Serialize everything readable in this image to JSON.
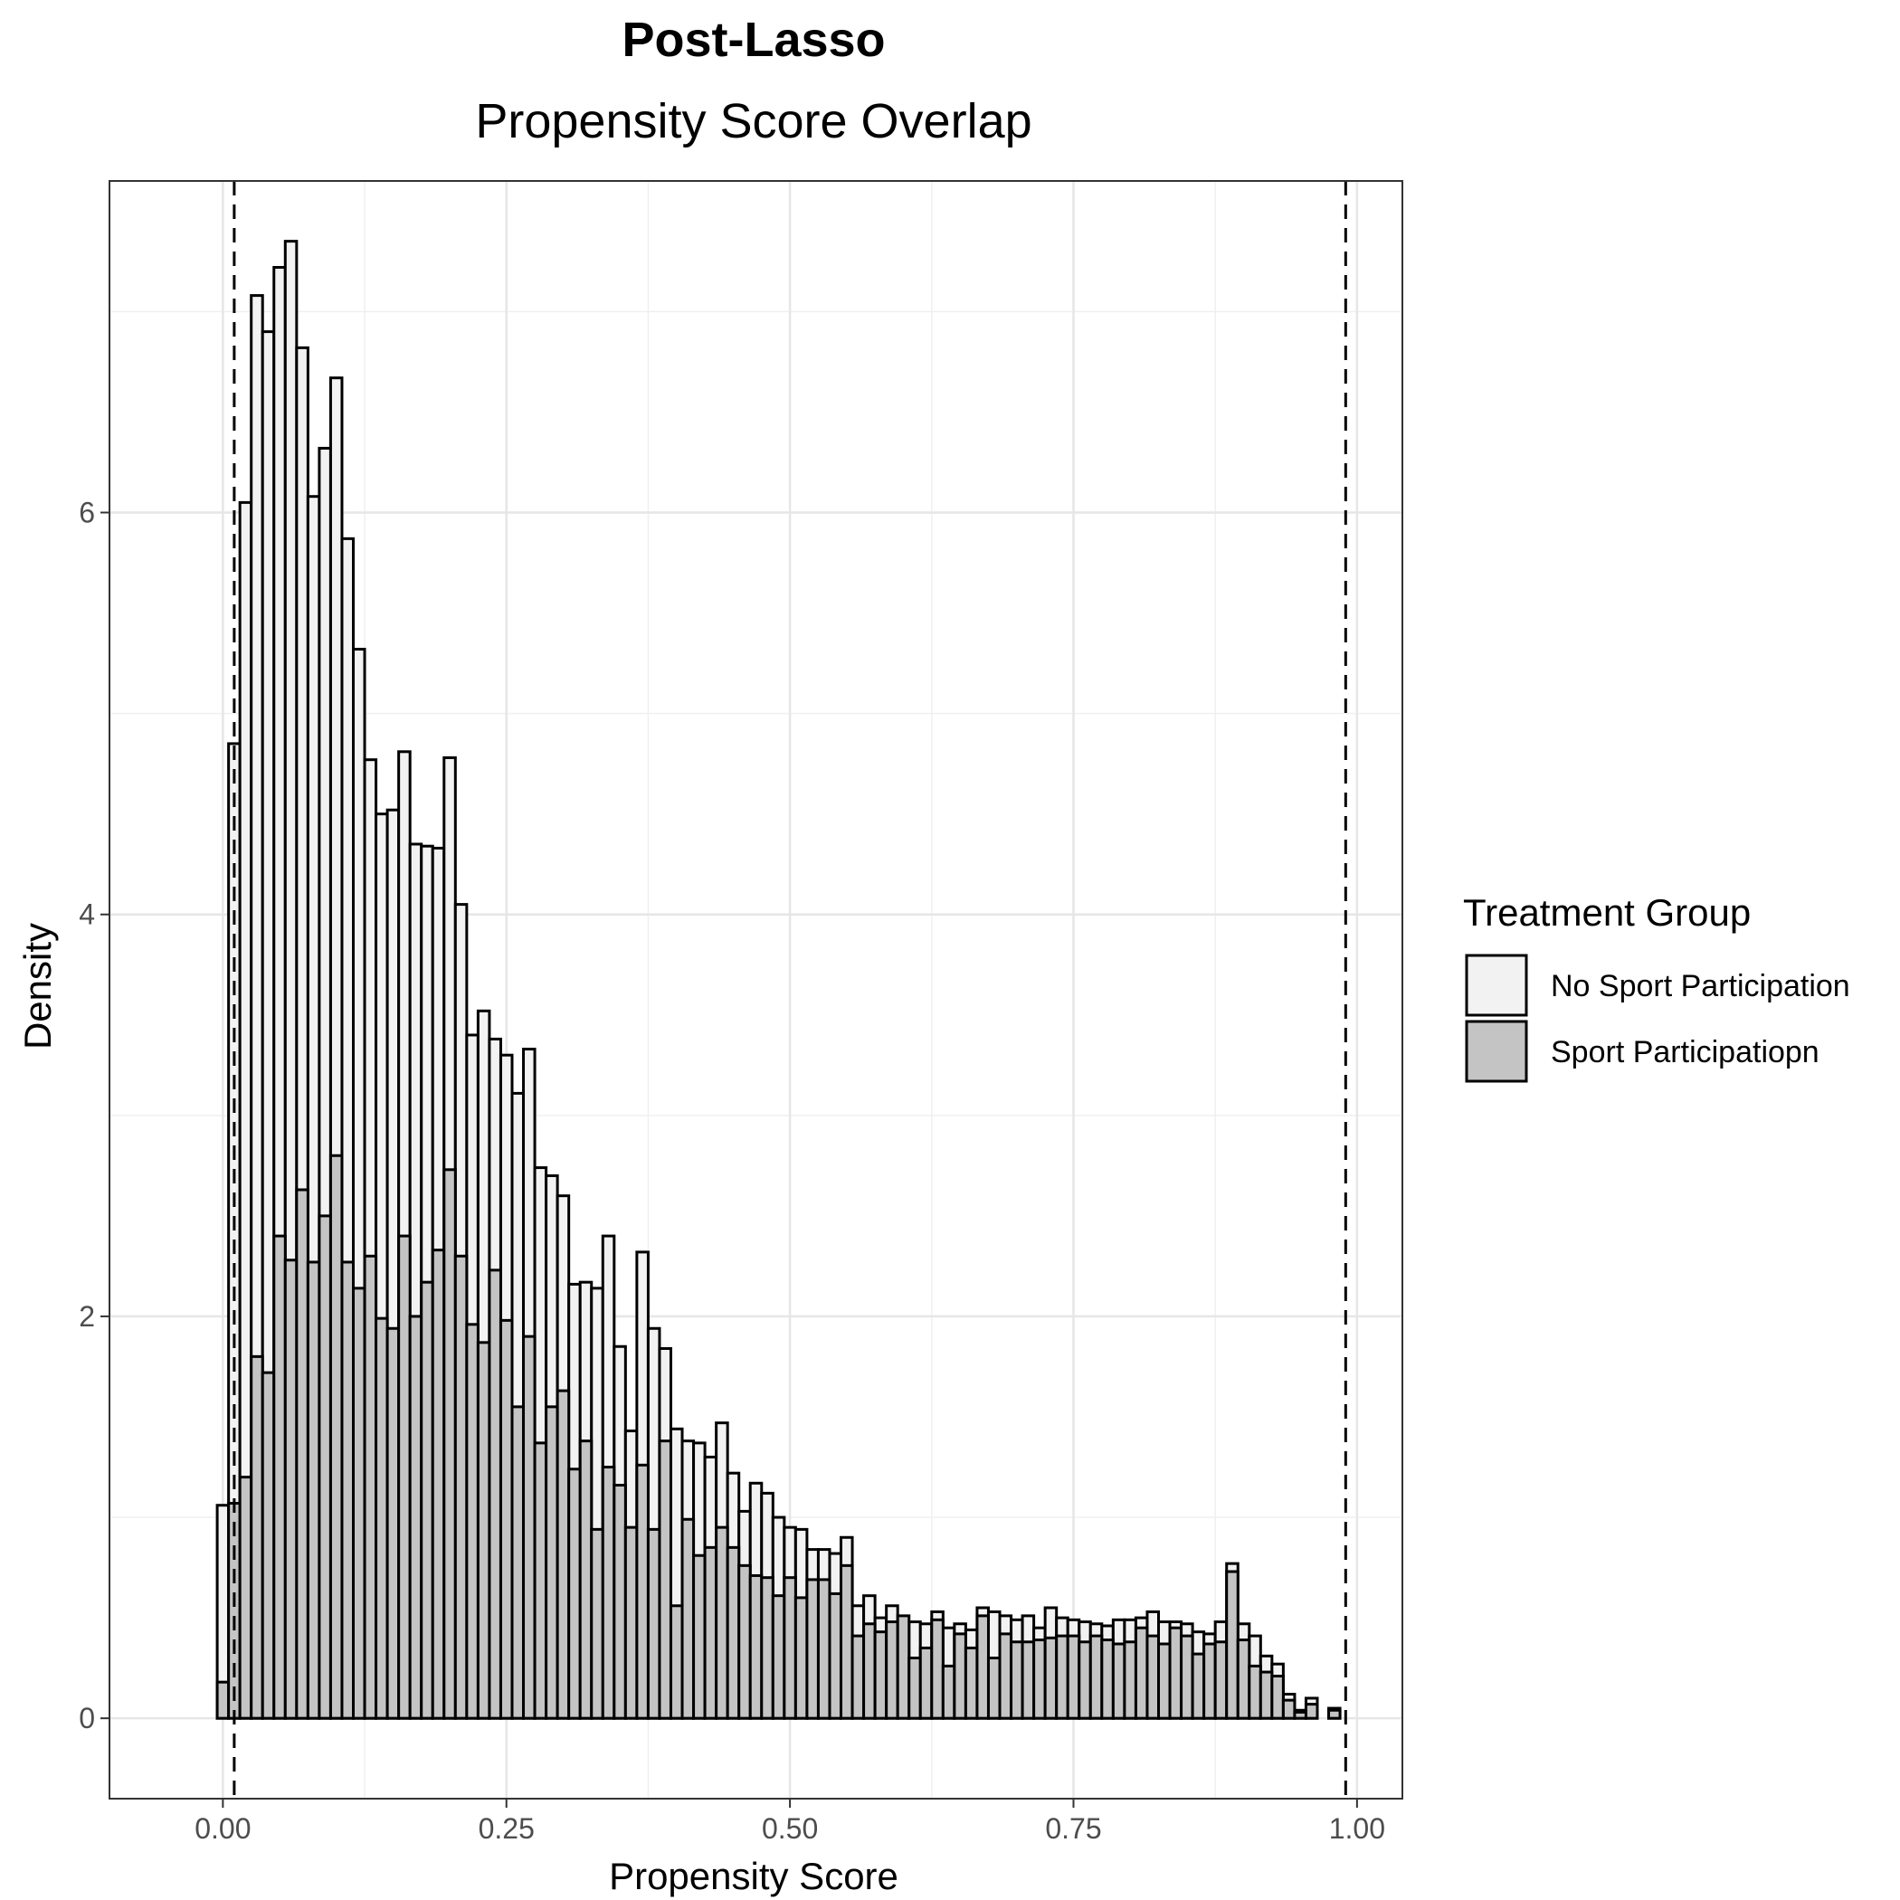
{
  "chart_data": {
    "type": "bar",
    "title": "Post-Lasso",
    "subtitle": "Propensity Score Overlap",
    "xlabel": "Propensity Score",
    "ylabel": "Density",
    "xlim": [
      -0.1,
      1.04
    ],
    "ylim": [
      -0.4,
      7.65
    ],
    "x_ticks": [
      {
        "value": 0,
        "label": "0.00"
      },
      {
        "value": 0.25,
        "label": "0.25"
      },
      {
        "value": 0.5,
        "label": "0.50"
      },
      {
        "value": 0.75,
        "label": "0.75"
      },
      {
        "value": 1.0,
        "label": "1.00"
      }
    ],
    "y_ticks": [
      {
        "value": 0,
        "label": "0"
      },
      {
        "value": 2,
        "label": "2"
      },
      {
        "value": 4,
        "label": "4"
      },
      {
        "value": 6,
        "label": "6"
      }
    ],
    "grid": true,
    "bin_start": -0.005,
    "bin_width": 0.01,
    "vlines": [
      0.01,
      0.99
    ],
    "legend": {
      "title": "Treatment Group",
      "position": "right",
      "entries": [
        {
          "name": "No Sport Participation",
          "fill": "#f2f2f2"
        },
        {
          "name": "Sport Participatiopn",
          "fill": "#c4c4c4"
        }
      ]
    },
    "series": [
      {
        "name": "No Sport Participation",
        "fill": "#f2f2f2",
        "values": [
          1.06,
          4.85,
          6.05,
          7.08,
          6.9,
          7.22,
          7.35,
          6.82,
          6.08,
          6.32,
          6.67,
          5.87,
          5.32,
          4.77,
          4.5,
          4.52,
          4.81,
          4.35,
          4.34,
          4.33,
          4.78,
          4.05,
          3.4,
          3.52,
          3.38,
          3.3,
          3.11,
          3.33,
          2.74,
          2.7,
          2.6,
          2.16,
          2.17,
          2.14,
          2.4,
          1.85,
          1.43,
          2.32,
          1.94,
          1.84,
          1.44,
          1.38,
          1.37,
          1.3,
          1.47,
          1.22,
          1.03,
          1.17,
          1.12,
          1.0,
          0.95,
          0.94,
          0.84,
          0.84,
          0.82,
          0.9,
          0.56,
          0.61,
          0.5,
          0.56,
          0.47,
          0.48,
          0.47,
          0.53,
          0.45,
          0.47,
          0.44,
          0.55,
          0.53,
          0.51,
          0.49,
          0.51,
          0.45,
          0.55,
          0.5,
          0.49,
          0.48,
          0.47,
          0.46,
          0.49,
          0.49,
          0.5,
          0.53,
          0.48,
          0.48,
          0.47,
          0.43,
          0.42,
          0.48,
          0.77,
          0.47,
          0.41,
          0.31,
          0.27,
          0.12,
          0.04,
          0.1,
          0.0,
          0.05
        ]
      },
      {
        "name": "Sport Participatiopn",
        "fill": "#c4c4c4",
        "values": [
          0.18,
          1.07,
          1.2,
          1.8,
          1.72,
          2.4,
          2.28,
          2.63,
          2.27,
          2.5,
          2.8,
          2.27,
          2.14,
          2.3,
          1.99,
          1.94,
          2.4,
          2.0,
          2.17,
          2.33,
          2.73,
          2.3,
          1.96,
          1.87,
          2.23,
          1.98,
          1.55,
          1.9,
          1.37,
          1.55,
          1.63,
          1.24,
          1.38,
          0.94,
          1.25,
          1.16,
          0.95,
          1.26,
          0.94,
          1.38,
          0.56,
          0.99,
          0.81,
          0.85,
          0.95,
          0.85,
          0.76,
          0.71,
          0.7,
          0.61,
          0.7,
          0.6,
          0.69,
          0.69,
          0.62,
          0.76,
          0.41,
          0.47,
          0.43,
          0.48,
          0.51,
          0.3,
          0.35,
          0.49,
          0.26,
          0.42,
          0.35,
          0.51,
          0.3,
          0.42,
          0.38,
          0.38,
          0.39,
          0.4,
          0.41,
          0.41,
          0.38,
          0.41,
          0.39,
          0.37,
          0.38,
          0.45,
          0.41,
          0.37,
          0.45,
          0.41,
          0.32,
          0.37,
          0.38,
          0.73,
          0.39,
          0.26,
          0.23,
          0.21,
          0.09,
          0.03,
          0.07,
          0.0,
          0.04
        ]
      }
    ]
  }
}
